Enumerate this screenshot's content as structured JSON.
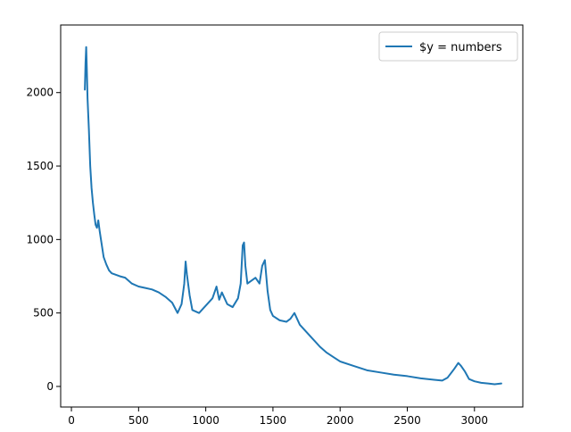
{
  "chart_data": {
    "type": "line",
    "title": "",
    "xlabel": "",
    "ylabel": "",
    "xlim": [
      -80,
      3360
    ],
    "ylim": [
      -140,
      2460
    ],
    "xticks": [
      0,
      500,
      1000,
      1500,
      2000,
      2500,
      3000
    ],
    "yticks": [
      0,
      500,
      1000,
      1500,
      2000
    ],
    "grid": false,
    "legend_position": "upper right",
    "colors": {
      "series": "#1f77b4"
    },
    "series": [
      {
        "name": "$y = numbers",
        "x": [
          100,
          105,
          110,
          115,
          120,
          130,
          140,
          150,
          160,
          170,
          180,
          190,
          200,
          210,
          220,
          240,
          260,
          280,
          300,
          330,
          360,
          400,
          450,
          500,
          550,
          600,
          650,
          700,
          750,
          790,
          820,
          840,
          850,
          860,
          880,
          900,
          950,
          1000,
          1050,
          1080,
          1100,
          1120,
          1140,
          1160,
          1200,
          1240,
          1260,
          1275,
          1285,
          1295,
          1310,
          1340,
          1370,
          1400,
          1420,
          1440,
          1460,
          1480,
          1500,
          1550,
          1600,
          1630,
          1660,
          1700,
          1750,
          1800,
          1850,
          1900,
          1950,
          2000,
          2100,
          2200,
          2300,
          2400,
          2500,
          2600,
          2700,
          2760,
          2800,
          2850,
          2880,
          2900,
          2930,
          2960,
          3000,
          3050,
          3100,
          3150,
          3200
        ],
        "y": [
          2020,
          2200,
          2310,
          2150,
          1960,
          1750,
          1500,
          1350,
          1250,
          1170,
          1100,
          1080,
          1130,
          1060,
          1000,
          880,
          830,
          790,
          770,
          760,
          750,
          740,
          700,
          680,
          670,
          660,
          640,
          610,
          570,
          500,
          560,
          700,
          850,
          760,
          620,
          520,
          500,
          550,
          600,
          680,
          590,
          640,
          600,
          560,
          540,
          600,
          700,
          960,
          980,
          820,
          700,
          720,
          740,
          700,
          820,
          860,
          650,
          520,
          480,
          450,
          440,
          460,
          500,
          420,
          370,
          320,
          270,
          230,
          200,
          170,
          140,
          110,
          95,
          80,
          70,
          55,
          45,
          40,
          60,
          120,
          160,
          140,
          100,
          50,
          35,
          25,
          20,
          15,
          20
        ]
      }
    ]
  }
}
